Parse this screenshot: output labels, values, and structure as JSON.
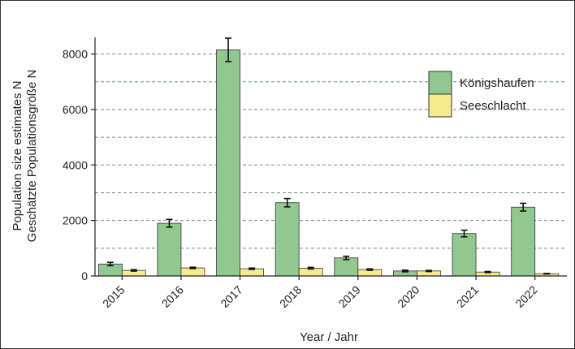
{
  "chart_data": {
    "type": "bar",
    "categories": [
      "2015",
      "2016",
      "2017",
      "2018",
      "2019",
      "2020",
      "2021",
      "2022"
    ],
    "series": [
      {
        "name": "Königshaufen",
        "values": [
          430,
          1900,
          8150,
          2640,
          650,
          180,
          1530,
          2480
        ],
        "error": [
          60,
          140,
          420,
          150,
          60,
          30,
          120,
          140
        ],
        "color": "#90c890"
      },
      {
        "name": "Seeschlacht",
        "values": [
          200,
          290,
          260,
          280,
          230,
          180,
          140,
          80
        ],
        "error": [
          25,
          25,
          25,
          30,
          25,
          20,
          20,
          10
        ],
        "color": "#f5eb8c"
      }
    ],
    "title": "",
    "xlabel": "Year / Jahr",
    "ylabel": [
      "Population size estimates N",
      "Geschätzte Populationsgröße N"
    ],
    "ylim": [
      0,
      8600
    ],
    "yticks": [
      0,
      2000,
      4000,
      6000,
      8000
    ],
    "grid": "horizontal dashed",
    "legend_position": "top-right"
  }
}
